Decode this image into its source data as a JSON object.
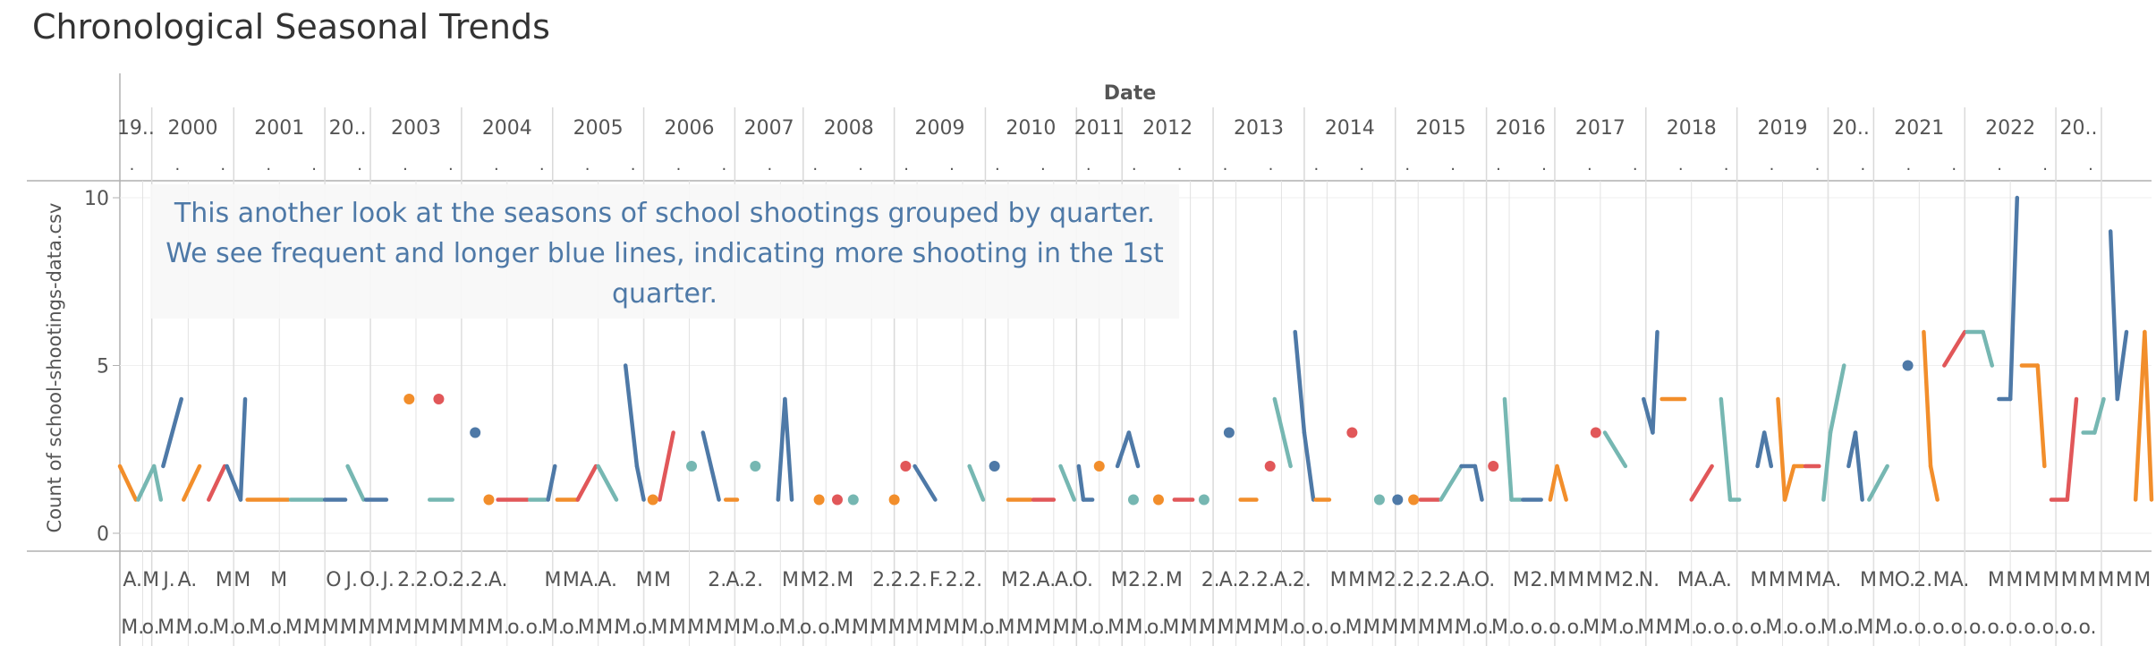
{
  "page": {
    "title": "Chronological Seasonal Trends"
  },
  "annotation": {
    "text": "This another look at the seasons of school shootings grouped by quarter. We see frequent and longer blue lines, indicating more shooting in the 1st quarter."
  },
  "chart_data": {
    "type": "line",
    "title": "Chronological Seasonal Trends",
    "xlabel": "Date",
    "ylabel": "Count of school-shootings-data.csv",
    "ylim": [
      0,
      11
    ],
    "yticks": [
      0,
      5,
      10
    ],
    "grid": true,
    "legend": "none",
    "colors": {
      "Q1": "#4e79a7",
      "Q2": "#f28e2b",
      "Q3": "#e15759",
      "Q4": "#76b7b2",
      "grid": "#d9d9d9",
      "axis": "#b0b0b0",
      "annotation": "#4e79a7"
    },
    "years": [
      {
        "label": "19..",
        "start": 0.0,
        "end": 0.7
      },
      {
        "label": "2000",
        "start": 0.7,
        "end": 2.5
      },
      {
        "label": "2001",
        "start": 2.5,
        "end": 4.5
      },
      {
        "label": "20..",
        "start": 4.5,
        "end": 5.5
      },
      {
        "label": "2003",
        "start": 5.5,
        "end": 7.5
      },
      {
        "label": "2004",
        "start": 7.5,
        "end": 9.5
      },
      {
        "label": "2005",
        "start": 9.5,
        "end": 11.5
      },
      {
        "label": "2006",
        "start": 11.5,
        "end": 13.5
      },
      {
        "label": "2007",
        "start": 13.5,
        "end": 15.0
      },
      {
        "label": "2008",
        "start": 15.0,
        "end": 17.0
      },
      {
        "label": "2009",
        "start": 17.0,
        "end": 19.0
      },
      {
        "label": "2010",
        "start": 19.0,
        "end": 21.0
      },
      {
        "label": "2011",
        "start": 21.0,
        "end": 22.0
      },
      {
        "label": "2012",
        "start": 22.0,
        "end": 24.0
      },
      {
        "label": "2013",
        "start": 24.0,
        "end": 26.0
      },
      {
        "label": "2014",
        "start": 26.0,
        "end": 28.0
      },
      {
        "label": "2015",
        "start": 28.0,
        "end": 30.0
      },
      {
        "label": "2016",
        "start": 30.0,
        "end": 31.5
      },
      {
        "label": "2017",
        "start": 31.5,
        "end": 33.5
      },
      {
        "label": "2018",
        "start": 33.5,
        "end": 35.5
      },
      {
        "label": "2019",
        "start": 35.5,
        "end": 37.5
      },
      {
        "label": "20..",
        "start": 37.5,
        "end": 38.5
      },
      {
        "label": "2021",
        "start": 38.5,
        "end": 40.5
      },
      {
        "label": "2022",
        "start": 40.5,
        "end": 42.5
      },
      {
        "label": "20..",
        "start": 42.5,
        "end": 43.5
      }
    ],
    "segments": [
      {
        "q": "Q2",
        "x": [
          0.0,
          0.35
        ],
        "y": [
          2,
          1
        ]
      },
      {
        "q": "Q4",
        "x": [
          0.4,
          0.75
        ],
        "y": [
          1,
          2
        ]
      },
      {
        "q": "Q4",
        "x": [
          0.75,
          0.9
        ],
        "y": [
          2,
          1
        ]
      },
      {
        "q": "Q1",
        "x": [
          0.95,
          1.35
        ],
        "y": [
          2,
          4
        ]
      },
      {
        "q": "Q2",
        "x": [
          1.4,
          1.75
        ],
        "y": [
          1,
          2
        ]
      },
      {
        "q": "Q3",
        "x": [
          1.95,
          2.3
        ],
        "y": [
          1,
          2
        ]
      },
      {
        "q": "Q1",
        "x": [
          2.35,
          2.65
        ],
        "y": [
          2,
          1
        ]
      },
      {
        "q": "Q1",
        "x": [
          2.65,
          2.75
        ],
        "y": [
          1,
          4
        ]
      },
      {
        "q": "Q2",
        "x": [
          2.8,
          3.7
        ],
        "y": [
          1,
          1
        ]
      },
      {
        "q": "Q4",
        "x": [
          3.75,
          4.45
        ],
        "y": [
          1,
          1
        ]
      },
      {
        "q": "Q1",
        "x": [
          4.5,
          4.95
        ],
        "y": [
          1,
          1
        ]
      },
      {
        "q": "Q4",
        "x": [
          5.0,
          5.35
        ],
        "y": [
          2,
          1
        ]
      },
      {
        "q": "Q1",
        "x": [
          5.4,
          5.85
        ],
        "y": [
          1,
          1
        ]
      },
      {
        "q": "Q4",
        "x": [
          6.8,
          7.3
        ],
        "y": [
          1,
          1
        ]
      },
      {
        "q": "Q3",
        "x": [
          8.3,
          8.95
        ],
        "y": [
          1,
          1
        ]
      },
      {
        "q": "Q4",
        "x": [
          9.0,
          9.35
        ],
        "y": [
          1,
          1
        ]
      },
      {
        "q": "Q1",
        "x": [
          9.4,
          9.55
        ],
        "y": [
          1,
          2
        ]
      },
      {
        "q": "Q2",
        "x": [
          9.6,
          10.05
        ],
        "y": [
          1,
          1
        ]
      },
      {
        "q": "Q3",
        "x": [
          10.05,
          10.45
        ],
        "y": [
          1,
          2
        ]
      },
      {
        "q": "Q4",
        "x": [
          10.5,
          10.9
        ],
        "y": [
          2,
          1
        ]
      },
      {
        "q": "Q1",
        "x": [
          11.1,
          11.35
        ],
        "y": [
          5,
          2
        ]
      },
      {
        "q": "Q1",
        "x": [
          11.35,
          11.5
        ],
        "y": [
          2,
          1
        ]
      },
      {
        "q": "Q3",
        "x": [
          11.85,
          12.15
        ],
        "y": [
          1,
          3
        ]
      },
      {
        "q": "Q1",
        "x": [
          12.8,
          13.15
        ],
        "y": [
          3,
          1
        ]
      },
      {
        "q": "Q2",
        "x": [
          13.3,
          13.55
        ],
        "y": [
          1,
          1
        ]
      },
      {
        "q": "Q1",
        "x": [
          14.45,
          14.6
        ],
        "y": [
          1,
          4
        ]
      },
      {
        "q": "Q1",
        "x": [
          14.6,
          14.75
        ],
        "y": [
          4,
          1
        ]
      },
      {
        "q": "Q1",
        "x": [
          17.45,
          17.9
        ],
        "y": [
          2,
          1
        ]
      },
      {
        "q": "Q4",
        "x": [
          18.65,
          18.95
        ],
        "y": [
          2,
          1
        ]
      },
      {
        "q": "Q2",
        "x": [
          19.5,
          20.0
        ],
        "y": [
          1,
          1
        ]
      },
      {
        "q": "Q3",
        "x": [
          20.05,
          20.5
        ],
        "y": [
          1,
          1
        ]
      },
      {
        "q": "Q4",
        "x": [
          20.65,
          20.95
        ],
        "y": [
          2,
          1
        ]
      },
      {
        "q": "Q1",
        "x": [
          21.05,
          21.15
        ],
        "y": [
          2,
          1
        ]
      },
      {
        "q": "Q1",
        "x": [
          21.15,
          21.35
        ],
        "y": [
          1,
          1
        ]
      },
      {
        "q": "Q1",
        "x": [
          21.9,
          22.15
        ],
        "y": [
          2,
          3
        ]
      },
      {
        "q": "Q1",
        "x": [
          22.15,
          22.35
        ],
        "y": [
          3,
          2
        ]
      },
      {
        "q": "Q3",
        "x": [
          23.15,
          23.55
        ],
        "y": [
          1,
          1
        ]
      },
      {
        "q": "Q2",
        "x": [
          24.6,
          24.95
        ],
        "y": [
          1,
          1
        ]
      },
      {
        "q": "Q4",
        "x": [
          25.35,
          25.7
        ],
        "y": [
          4,
          2
        ]
      },
      {
        "q": "Q1",
        "x": [
          25.8,
          26.0
        ],
        "y": [
          6,
          3
        ]
      },
      {
        "q": "Q1",
        "x": [
          26.0,
          26.2
        ],
        "y": [
          3,
          1
        ]
      },
      {
        "q": "Q2",
        "x": [
          26.25,
          26.55
        ],
        "y": [
          1,
          1
        ]
      },
      {
        "q": "Q3",
        "x": [
          28.55,
          28.95
        ],
        "y": [
          1,
          1
        ]
      },
      {
        "q": "Q4",
        "x": [
          29.0,
          29.45
        ],
        "y": [
          1,
          2
        ]
      },
      {
        "q": "Q1",
        "x": [
          29.45,
          29.75
        ],
        "y": [
          2,
          2
        ]
      },
      {
        "q": "Q1",
        "x": [
          29.75,
          29.9
        ],
        "y": [
          2,
          1
        ]
      },
      {
        "q": "Q4",
        "x": [
          30.4,
          30.55
        ],
        "y": [
          4,
          1
        ]
      },
      {
        "q": "Q4",
        "x": [
          30.55,
          30.75
        ],
        "y": [
          1,
          1
        ]
      },
      {
        "q": "Q1",
        "x": [
          30.8,
          31.2
        ],
        "y": [
          1,
          1
        ]
      },
      {
        "q": "Q2",
        "x": [
          31.4,
          31.55
        ],
        "y": [
          1,
          2
        ]
      },
      {
        "q": "Q2",
        "x": [
          31.55,
          31.75
        ],
        "y": [
          2,
          1
        ]
      },
      {
        "q": "Q4",
        "x": [
          32.6,
          33.05
        ],
        "y": [
          3,
          2
        ]
      },
      {
        "q": "Q1",
        "x": [
          33.45,
          33.65
        ],
        "y": [
          4,
          3
        ]
      },
      {
        "q": "Q1",
        "x": [
          33.65,
          33.75
        ],
        "y": [
          3,
          6
        ]
      },
      {
        "q": "Q2",
        "x": [
          33.85,
          34.35
        ],
        "y": [
          4,
          4
        ]
      },
      {
        "q": "Q3",
        "x": [
          34.5,
          34.95
        ],
        "y": [
          1,
          2
        ]
      },
      {
        "q": "Q4",
        "x": [
          35.15,
          35.35
        ],
        "y": [
          4,
          1
        ]
      },
      {
        "q": "Q4",
        "x": [
          35.35,
          35.55
        ],
        "y": [
          1,
          1
        ]
      },
      {
        "q": "Q1",
        "x": [
          35.95,
          36.1
        ],
        "y": [
          2,
          3
        ]
      },
      {
        "q": "Q1",
        "x": [
          36.1,
          36.25
        ],
        "y": [
          3,
          2
        ]
      },
      {
        "q": "Q2",
        "x": [
          36.4,
          36.55
        ],
        "y": [
          4,
          1
        ]
      },
      {
        "q": "Q2",
        "x": [
          36.55,
          36.75
        ],
        "y": [
          1,
          2
        ]
      },
      {
        "q": "Q2",
        "x": [
          36.75,
          36.95
        ],
        "y": [
          2,
          2
        ]
      },
      {
        "q": "Q3",
        "x": [
          37.0,
          37.3
        ],
        "y": [
          2,
          2
        ]
      },
      {
        "q": "Q4",
        "x": [
          37.4,
          37.55
        ],
        "y": [
          1,
          3
        ]
      },
      {
        "q": "Q4",
        "x": [
          37.55,
          37.85
        ],
        "y": [
          3,
          5
        ]
      },
      {
        "q": "Q1",
        "x": [
          37.95,
          38.1
        ],
        "y": [
          2,
          3
        ]
      },
      {
        "q": "Q1",
        "x": [
          38.1,
          38.25
        ],
        "y": [
          3,
          1
        ]
      },
      {
        "q": "Q4",
        "x": [
          38.4,
          38.8
        ],
        "y": [
          1,
          2
        ]
      },
      {
        "q": "Q2",
        "x": [
          39.6,
          39.75
        ],
        "y": [
          6,
          2
        ]
      },
      {
        "q": "Q2",
        "x": [
          39.75,
          39.9
        ],
        "y": [
          2,
          1
        ]
      },
      {
        "q": "Q3",
        "x": [
          40.05,
          40.5
        ],
        "y": [
          5,
          6
        ]
      },
      {
        "q": "Q4",
        "x": [
          40.55,
          40.9
        ],
        "y": [
          6,
          6
        ]
      },
      {
        "q": "Q4",
        "x": [
          40.9,
          41.1
        ],
        "y": [
          6,
          5
        ]
      },
      {
        "q": "Q1",
        "x": [
          41.25,
          41.5
        ],
        "y": [
          4,
          4
        ]
      },
      {
        "q": "Q1",
        "x": [
          41.5,
          41.65
        ],
        "y": [
          4,
          10
        ]
      },
      {
        "q": "Q2",
        "x": [
          41.75,
          42.1
        ],
        "y": [
          5,
          5
        ]
      },
      {
        "q": "Q2",
        "x": [
          42.1,
          42.25
        ],
        "y": [
          5,
          2
        ]
      },
      {
        "q": "Q3",
        "x": [
          42.4,
          42.75
        ],
        "y": [
          1,
          1
        ]
      },
      {
        "q": "Q3",
        "x": [
          42.75,
          42.95
        ],
        "y": [
          1,
          4
        ]
      },
      {
        "q": "Q4",
        "x": [
          43.1,
          43.35
        ],
        "y": [
          3,
          3
        ]
      },
      {
        "q": "Q4",
        "x": [
          43.35,
          43.55
        ],
        "y": [
          3,
          4
        ]
      },
      {
        "q": "Q1",
        "x": [
          43.7,
          43.85
        ],
        "y": [
          9,
          4
        ]
      },
      {
        "q": "Q1",
        "x": [
          43.85,
          44.05
        ],
        "y": [
          4,
          6
        ]
      },
      {
        "q": "Q2",
        "x": [
          44.25,
          44.45
        ],
        "y": [
          1,
          6
        ]
      },
      {
        "q": "Q2",
        "x": [
          44.45,
          44.6
        ],
        "y": [
          6,
          1
        ]
      }
    ],
    "points": [
      {
        "q": "Q2",
        "x": 6.35,
        "y": 4
      },
      {
        "q": "Q3",
        "x": 7.0,
        "y": 4
      },
      {
        "q": "Q1",
        "x": 7.8,
        "y": 3
      },
      {
        "q": "Q2",
        "x": 8.1,
        "y": 1
      },
      {
        "q": "Q2",
        "x": 11.7,
        "y": 1
      },
      {
        "q": "Q4",
        "x": 12.55,
        "y": 2
      },
      {
        "q": "Q4",
        "x": 13.95,
        "y": 2
      },
      {
        "q": "Q2",
        "x": 15.35,
        "y": 1
      },
      {
        "q": "Q3",
        "x": 15.75,
        "y": 1
      },
      {
        "q": "Q4",
        "x": 16.1,
        "y": 1
      },
      {
        "q": "Q2",
        "x": 17.0,
        "y": 1
      },
      {
        "q": "Q3",
        "x": 17.25,
        "y": 2
      },
      {
        "q": "Q1",
        "x": 19.2,
        "y": 2
      },
      {
        "q": "Q2",
        "x": 21.5,
        "y": 2
      },
      {
        "q": "Q4",
        "x": 22.25,
        "y": 1
      },
      {
        "q": "Q2",
        "x": 22.8,
        "y": 1
      },
      {
        "q": "Q4",
        "x": 23.8,
        "y": 1
      },
      {
        "q": "Q1",
        "x": 24.35,
        "y": 3
      },
      {
        "q": "Q3",
        "x": 25.25,
        "y": 2
      },
      {
        "q": "Q3",
        "x": 27.05,
        "y": 3
      },
      {
        "q": "Q4",
        "x": 27.65,
        "y": 1
      },
      {
        "q": "Q1",
        "x": 28.05,
        "y": 1
      },
      {
        "q": "Q2",
        "x": 28.4,
        "y": 1
      },
      {
        "q": "Q3",
        "x": 30.15,
        "y": 2
      },
      {
        "q": "Q3",
        "x": 32.4,
        "y": 3
      },
      {
        "q": "Q1",
        "x": 39.25,
        "y": 5
      }
    ],
    "bottom_labels_row1": [
      "A.",
      "M",
      "J.",
      "A.",
      "",
      "M",
      "M",
      "",
      "M",
      "",
      "",
      "O",
      "J.",
      "O.",
      "J.",
      "2.",
      "2.",
      "O.",
      "2.",
      "2.",
      "A.",
      "",
      "",
      "M",
      "M",
      "A.",
      "A.",
      "",
      "M",
      "M",
      "",
      "",
      "2.",
      "A.",
      "2.",
      "",
      "M",
      "M",
      "2.",
      "M",
      "",
      "2.",
      "2.",
      "2.",
      "F.",
      "2.",
      "2.",
      "",
      "M",
      "2.",
      "A.",
      "A.",
      "O.",
      "",
      "M",
      "2.",
      "2.",
      "M",
      "",
      "2.",
      "A.",
      "2.",
      "2.",
      "A.",
      "2.",
      "",
      "M",
      "M",
      "M",
      "2.",
      "2.",
      "2.",
      "2.",
      "A.",
      "O.",
      "",
      "M",
      "2.",
      "M",
      "M",
      "M",
      "M",
      "2.",
      "N.",
      "",
      "M",
      "A.",
      "A.",
      "",
      "M",
      "M",
      "M",
      "M",
      "A.",
      "",
      "M",
      "M",
      "O.",
      "2.",
      "M",
      "A.",
      "",
      "M",
      "M",
      "M",
      "M",
      "M",
      "M",
      "M",
      "M",
      "M"
    ],
    "bottom_labels_row2": [
      "M.",
      "o.",
      "M.",
      "M.",
      "o.",
      "M.",
      "o.",
      "M.",
      "o.",
      "M.",
      "M.",
      "M.",
      "M.",
      "M.",
      "M.",
      "M.",
      "M.",
      "M.",
      "M.",
      "M.",
      "M.",
      "o.",
      "o.",
      "M.",
      "o.",
      "M.",
      "M.",
      "M.",
      "o.",
      "M.",
      "M.",
      "M.",
      "M.",
      "M.",
      "M.",
      "o.",
      "M.",
      "o.",
      "o.",
      "M.",
      "M.",
      "M.",
      "M.",
      "M.",
      "M.",
      "M.",
      "M.",
      "o.",
      "M.",
      "M.",
      "M.",
      "M.",
      "M.",
      "o.",
      "M.",
      "M.",
      "o.",
      "M.",
      "M.",
      "M.",
      "M.",
      "M.",
      "M.",
      "M.",
      "o.",
      "o.",
      "o.",
      "M.",
      "M.",
      "M.",
      "M.",
      "M.",
      "M.",
      "M.",
      "o.",
      "M.",
      "o.",
      "o.",
      "o.",
      "o.",
      "M.",
      "M.",
      "o.",
      "M.",
      "M.",
      "M.",
      "o.",
      "o.",
      "o.",
      "o.",
      "M.",
      "o.",
      "o.",
      "M.",
      "o.",
      "M.",
      "M.",
      "o.",
      "o.",
      "o.",
      "o.",
      "o.",
      "o.",
      "o.",
      "o.",
      "o.",
      "o.",
      "o."
    ]
  }
}
